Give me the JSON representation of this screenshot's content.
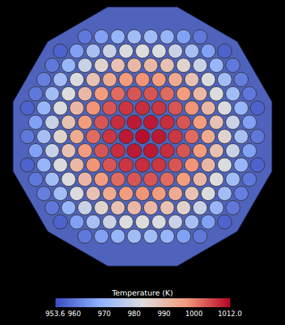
{
  "chart_data": {
    "type": "heatmap",
    "tick_labels": false,
    "cells": [
      [
        960,
        966,
        970,
        972,
        972,
        970,
        966,
        960
      ],
      [
        957,
        966,
        973,
        979,
        982,
        983,
        982,
        979,
        973,
        966,
        957
      ],
      [
        960,
        970,
        979,
        985,
        989,
        991,
        991,
        989,
        985,
        979,
        970,
        960
      ],
      [
        961,
        972,
        982,
        989,
        994,
        997,
        998,
        997,
        994,
        989,
        982,
        972,
        961
      ],
      [
        960,
        972,
        983,
        991,
        997,
        1002,
        1004,
        1004,
        1002,
        997,
        991,
        983,
        972,
        960
      ],
      [
        957,
        970,
        982,
        991,
        998,
        1004,
        1007,
        1008,
        1007,
        1004,
        998,
        991,
        982,
        970,
        957
      ],
      [
        966,
        979,
        989,
        997,
        1004,
        1008,
        1010,
        1010,
        1008,
        1004,
        997,
        989,
        979,
        966
      ],
      [
        960,
        973,
        985,
        994,
        1002,
        1007,
        1010,
        1011,
        1010,
        1007,
        1002,
        994,
        985,
        973,
        960
      ],
      [
        966,
        979,
        989,
        997,
        1004,
        1008,
        1010,
        1010,
        1008,
        1004,
        997,
        989,
        979,
        966
      ],
      [
        957,
        970,
        982,
        991,
        998,
        1004,
        1007,
        1008,
        1007,
        1004,
        998,
        991,
        982,
        970,
        957
      ],
      [
        960,
        972,
        983,
        991,
        997,
        1002,
        1004,
        1004,
        1002,
        997,
        991,
        983,
        972,
        960
      ],
      [
        961,
        972,
        982,
        989,
        994,
        997,
        998,
        997,
        994,
        989,
        982,
        972,
        961
      ],
      [
        960,
        970,
        979,
        985,
        989,
        991,
        991,
        989,
        985,
        979,
        970,
        960
      ],
      [
        957,
        966,
        973,
        979,
        982,
        983,
        982,
        979,
        973,
        966,
        957
      ],
      [
        960,
        966,
        970,
        972,
        972,
        970,
        966,
        960
      ]
    ],
    "colorbar": {
      "title": "Temperature (K)",
      "range": [
        953.6,
        1012.0
      ],
      "ticks": [
        953.6,
        960,
        970,
        980,
        990,
        1000,
        {
          "value": 1012.0,
          "label": "1012.0"
        }
      ]
    }
  }
}
